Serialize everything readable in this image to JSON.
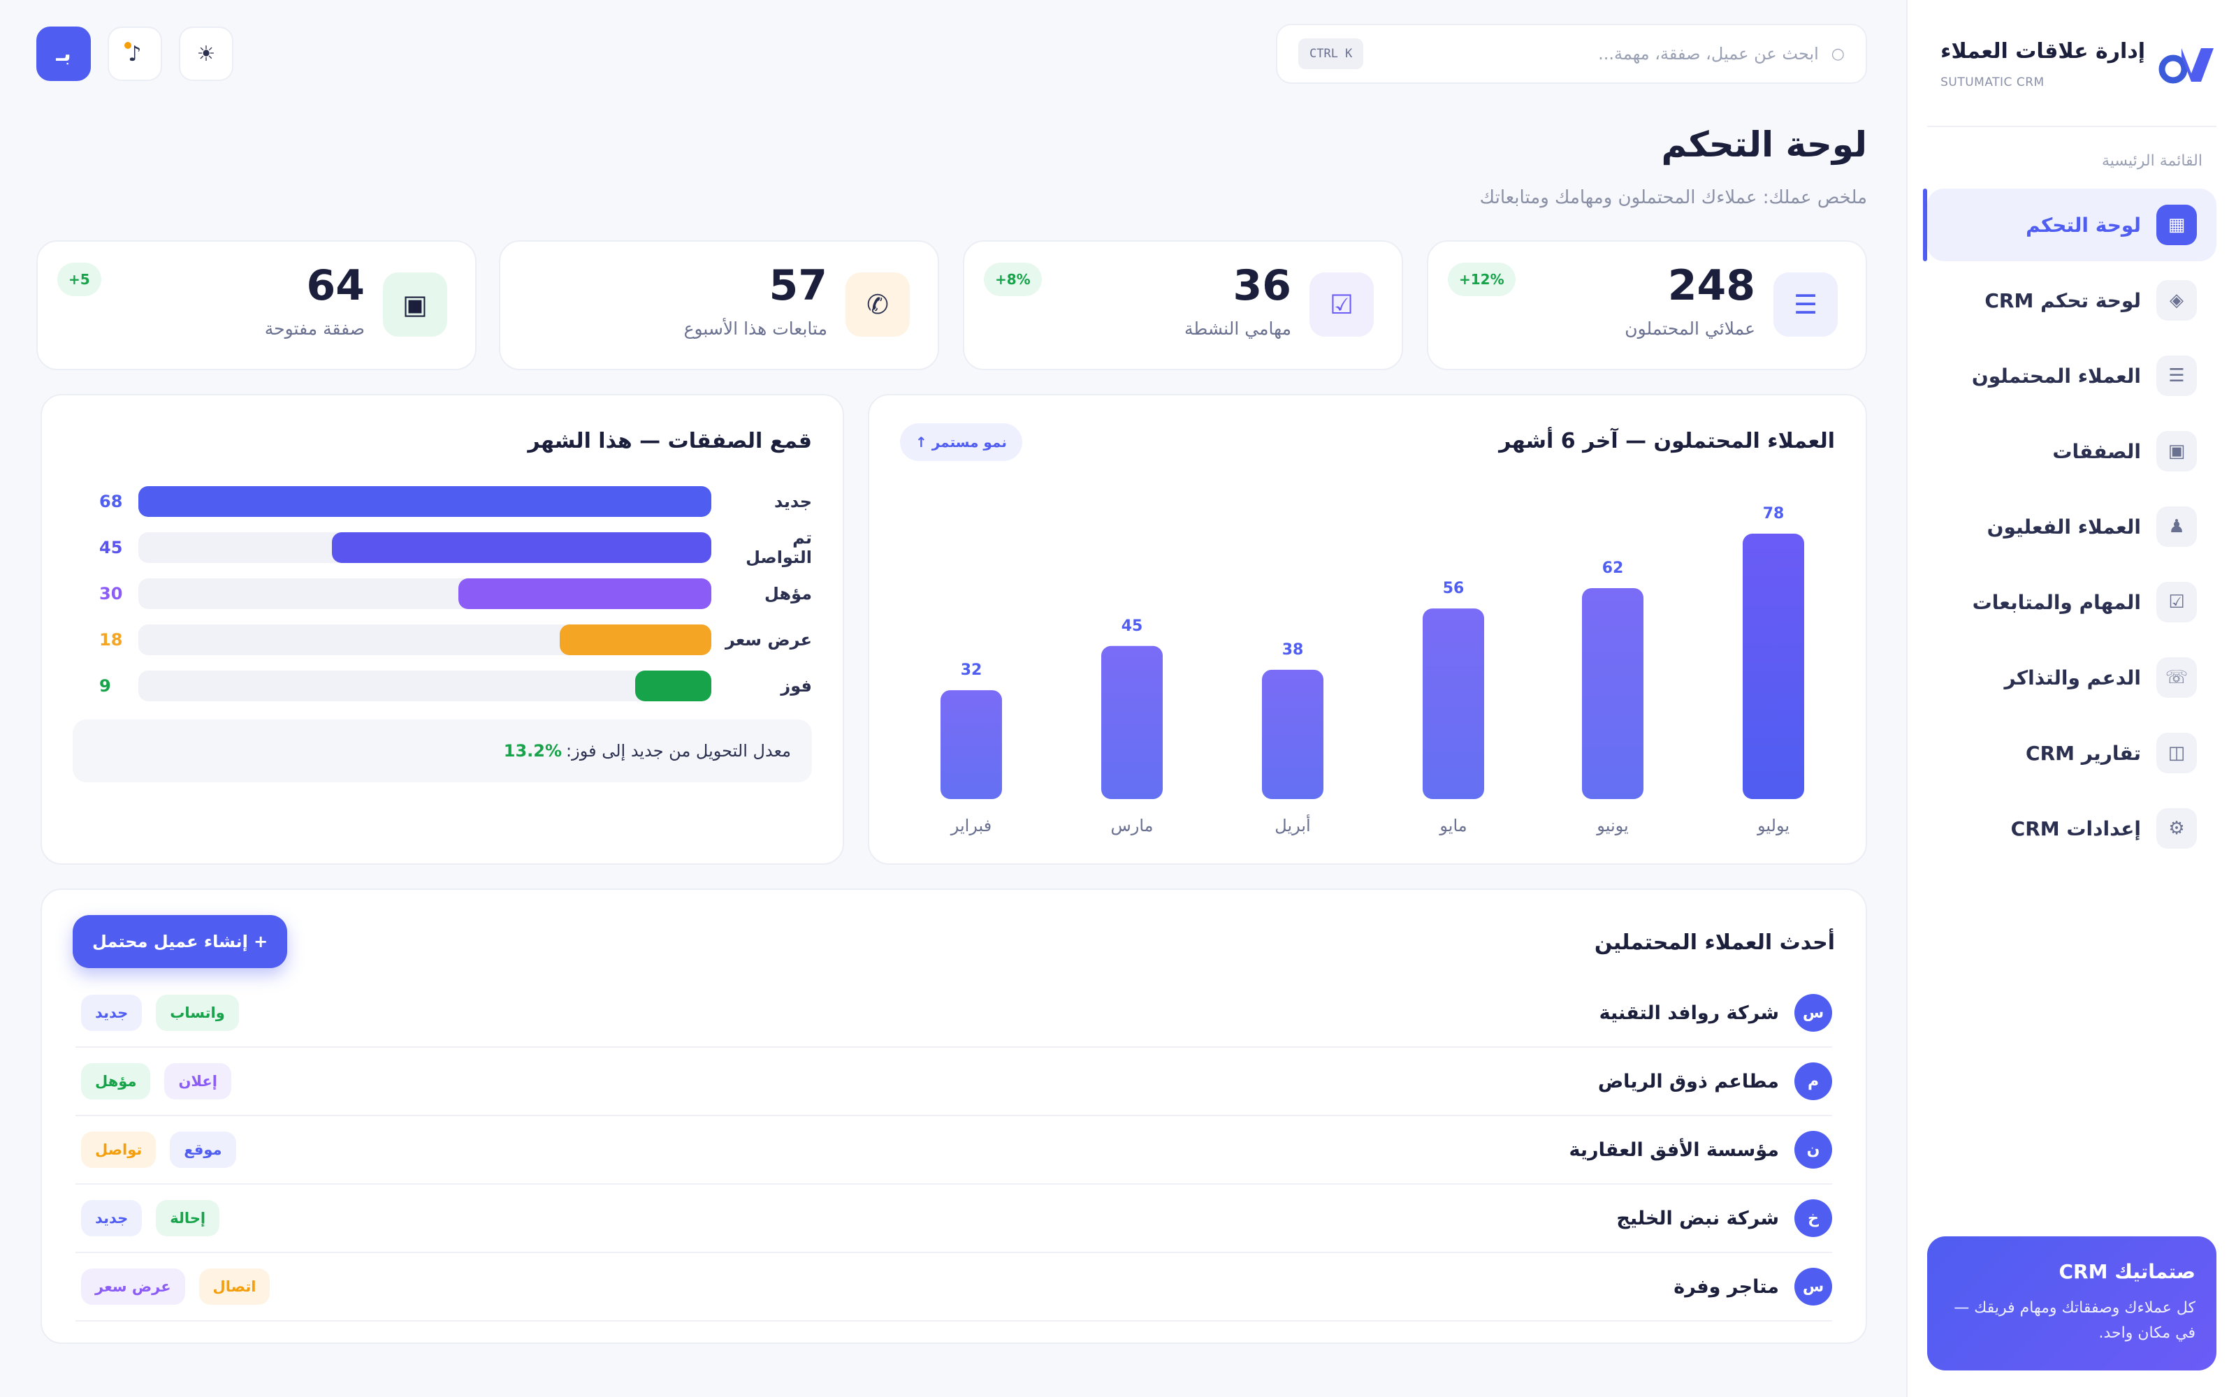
{
  "brand": {
    "title": "إدارة علاقات العملاء",
    "subtitle": "SUTUMATIC CRM"
  },
  "sidebar": {
    "section_label": "القائمة الرئيسية",
    "items": [
      {
        "label": "لوحة التحكم",
        "icon": "▦",
        "icon_name": "dashboard-icon",
        "active": true
      },
      {
        "label": "لوحة تحكم CRM",
        "icon": "◈",
        "icon_name": "crm-dashboard-icon"
      },
      {
        "label": "العملاء المحتملون",
        "icon": "☰",
        "icon_name": "list-icon"
      },
      {
        "label": "الصفقات",
        "icon": "▣",
        "icon_name": "deals-icon"
      },
      {
        "label": "العملاء الفعليون",
        "icon": "♟",
        "icon_name": "customers-icon"
      },
      {
        "label": "المهام والمتابعات",
        "icon": "☑",
        "icon_name": "tasks-icon"
      },
      {
        "label": "الدعم والتذاكر",
        "icon": "☏",
        "icon_name": "support-icon"
      },
      {
        "label": "تقارير CRM",
        "icon": "◫",
        "icon_name": "reports-icon"
      },
      {
        "label": "إعدادات CRM",
        "icon": "⚙",
        "icon_name": "settings-icon"
      }
    ],
    "promo": {
      "title": "صتماتيك CRM",
      "text": "كل عملاءك وصفقاتك ومهام فريقك — في مكان واحد."
    }
  },
  "header": {
    "search_placeholder": "ابحث عن عميل، صفقة، مهمة...",
    "shortcut": "CTRL K",
    "user_initial": "بـ"
  },
  "page": {
    "title": "لوحة التحكم",
    "subtitle": "ملخص عملك: عملاءك المحتملون ومهامك ومتابعاتك"
  },
  "stats": [
    {
      "value": "248",
      "label": "عملائي المحتملون",
      "badge": "+12%",
      "icon": "☰",
      "icon_name": "leads-icon",
      "icon_bg": "#eef0fd",
      "icon_color": "#4f5df0"
    },
    {
      "value": "36",
      "label": "مهامي النشطة",
      "badge": "+8%",
      "icon": "☑",
      "icon_name": "tasks-icon",
      "icon_bg": "#f1effd",
      "icon_color": "#6b5cf6"
    },
    {
      "value": "57",
      "label": "متابعات هذا الأسبوع",
      "badge": "",
      "icon": "✆",
      "icon_name": "phone-icon",
      "icon_bg": "#fff4e4",
      "icon_color": "#2b3050"
    },
    {
      "value": "64",
      "label": "صفقة مفتوحة",
      "badge": "+5",
      "icon": "▣",
      "icon_name": "deals-icon",
      "icon_bg": "#e6f7ee",
      "icon_color": "#1b1f3b"
    }
  ],
  "leads_chart": {
    "title": "العملاء المحتملون — آخر 6 أشهر",
    "badge": "نمو مستمر ↑"
  },
  "chart_data": {
    "type": "bar",
    "categories": [
      "يوليو",
      "يونيو",
      "مايو",
      "أبريل",
      "مارس",
      "فبراير"
    ],
    "values": [
      78,
      62,
      56,
      38,
      45,
      32
    ],
    "title": "العملاء المحتملون — آخر 6 أشهر",
    "ylim": [
      0,
      78
    ],
    "grid": false
  },
  "funnel": {
    "title": "قمع الصفقات — هذا الشهر",
    "rows": [
      {
        "label": "جديد",
        "count": 68,
        "color": "#4f5df0"
      },
      {
        "label": "تم التواصل",
        "count": 45,
        "color": "#5b55ef"
      },
      {
        "label": "مؤهل",
        "count": 30,
        "color": "#8b5cf6"
      },
      {
        "label": "عرض سعر",
        "count": 18,
        "color": "#f5a524"
      },
      {
        "label": "فوز",
        "count": 9,
        "color": "#16a34a"
      }
    ],
    "max": 68,
    "conversion_label": "معدل التحويل من جديد إلى فوز:",
    "conversion_value": "13.2%"
  },
  "recent": {
    "title": "أحدث العملاء المحتملين",
    "create_label": "+ إنشاء عميل محتمل",
    "leads": [
      {
        "initial": "س",
        "name": "شركة روافد التقنية",
        "tags": [
          {
            "text": "واتساب",
            "fg": "#16a34a",
            "bg": "#e7f8ee"
          },
          {
            "text": "جديد",
            "fg": "#4f5df0",
            "bg": "#eef0fd"
          }
        ]
      },
      {
        "initial": "م",
        "name": "مطاعم ذوق الرياض",
        "tags": [
          {
            "text": "إعلان",
            "fg": "#8b5cf6",
            "bg": "#f3eefe"
          },
          {
            "text": "مؤهل",
            "fg": "#16a34a",
            "bg": "#e7f8ee"
          }
        ]
      },
      {
        "initial": "ن",
        "name": "مؤسسة الأفق العقارية",
        "tags": [
          {
            "text": "موقع",
            "fg": "#4f5df0",
            "bg": "#eef0fd"
          },
          {
            "text": "تواصل",
            "fg": "#f59e0b",
            "bg": "#fff4e4"
          }
        ]
      },
      {
        "initial": "خ",
        "name": "شركة نبض الخليج",
        "tags": [
          {
            "text": "إحالة",
            "fg": "#16a34a",
            "bg": "#e7f8ee"
          },
          {
            "text": "جديد",
            "fg": "#4f5df0",
            "bg": "#eef0fd"
          }
        ]
      },
      {
        "initial": "س",
        "name": "متاجر وفرة",
        "tags": [
          {
            "text": "اتصال",
            "fg": "#f59e0b",
            "bg": "#fff4e4"
          },
          {
            "text": "عرض سعر",
            "fg": "#8b5cf6",
            "bg": "#f3eefe"
          }
        ]
      }
    ]
  },
  "colors": {
    "accent": "#4f5df0",
    "success": "#16a34a",
    "warning": "#f5a524",
    "purple": "#8b5cf6"
  }
}
